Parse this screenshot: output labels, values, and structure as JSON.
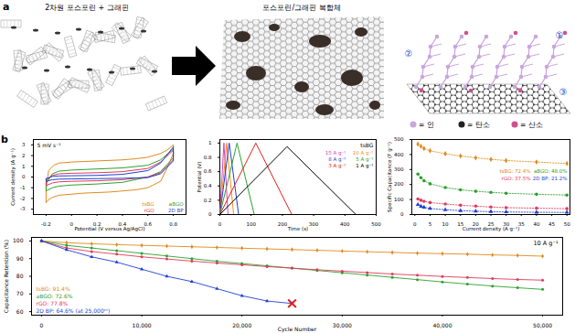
{
  "panel_a": {
    "label": "a",
    "left_title": "2차원 포스포린 + 그래핀",
    "middle_title": "포스포린/그래핀 복합체",
    "atom_legend": [
      {
        "label": "= 인",
        "color": "#c9a6dd"
      },
      {
        "label": "= 탄소",
        "color": "#222222"
      },
      {
        "label": "= 산소",
        "color": "#d0508f"
      }
    ],
    "site_labels": [
      "①",
      "②",
      "③"
    ]
  },
  "panel_b": {
    "label": "b"
  },
  "chart_data": [
    {
      "type": "line",
      "annotations": [
        "5 mV s⁻¹"
      ],
      "x_label": "Potential (V versus Ag/AgCl)",
      "y_label": "Current density (A g⁻¹)",
      "xlim": [
        -0.3,
        0.9
      ],
      "xticks": [
        -0.2,
        0,
        0.2,
        0.4,
        0.6,
        0.8
      ],
      "ylim": [
        -3.5,
        3.5
      ],
      "yticks": [
        -3,
        -2,
        -1,
        0,
        1,
        2,
        3
      ],
      "series": [
        {
          "name": "tsBG",
          "color": "#e08a1e",
          "x": [
            -0.2,
            -0.18,
            -0.14,
            -0.1,
            0,
            0.1,
            0.2,
            0.3,
            0.4,
            0.5,
            0.6,
            0.7,
            0.75,
            0.8,
            0.8,
            0.75,
            0.7,
            0.6,
            0.5,
            0.4,
            0.3,
            0.2,
            0.1,
            0,
            -0.1,
            -0.15,
            -0.18,
            -0.2,
            -0.2
          ],
          "values": [
            -1.2,
            0.6,
            1.1,
            1.3,
            1.4,
            1.45,
            1.5,
            1.55,
            1.6,
            1.7,
            1.85,
            2.2,
            2.5,
            3.0,
            2.2,
            0.8,
            -0.4,
            -1.0,
            -1.2,
            -1.3,
            -1.4,
            -1.45,
            -1.5,
            -1.6,
            -1.7,
            -1.9,
            -2.1,
            -2.4,
            -1.2
          ]
        },
        {
          "name": "aBGO",
          "color": "#2ca02c",
          "x": [
            -0.2,
            -0.15,
            -0.1,
            0,
            0.2,
            0.4,
            0.6,
            0.7,
            0.8,
            0.8,
            0.7,
            0.6,
            0.4,
            0.2,
            0,
            -0.1,
            -0.15,
            -0.2,
            -0.2
          ],
          "values": [
            -0.6,
            0.3,
            0.55,
            0.65,
            0.75,
            0.85,
            1.1,
            1.6,
            2.6,
            1.8,
            0.5,
            0,
            -0.5,
            -0.65,
            -0.75,
            -0.85,
            -1.0,
            -1.3,
            -0.6
          ]
        },
        {
          "name": "rGO",
          "color": "#e03a5a",
          "x": [
            -0.2,
            -0.15,
            -0.1,
            0,
            0.2,
            0.4,
            0.6,
            0.7,
            0.8,
            0.8,
            0.7,
            0.6,
            0.4,
            0.2,
            0,
            -0.1,
            -0.15,
            -0.2,
            -0.2
          ],
          "values": [
            -0.3,
            0.15,
            0.3,
            0.35,
            0.4,
            0.5,
            0.8,
            1.4,
            2.5,
            1.6,
            0.4,
            0,
            -0.25,
            -0.35,
            -0.4,
            -0.45,
            -0.55,
            -0.8,
            -0.3
          ]
        },
        {
          "name": "2D BP",
          "color": "#1f3fd0",
          "x": [
            -0.2,
            -0.15,
            -0.1,
            0,
            0.2,
            0.4,
            0.6,
            0.7,
            0.8,
            0.8,
            0.7,
            0.6,
            0.4,
            0.2,
            0,
            -0.1,
            -0.15,
            -0.2,
            -0.2
          ],
          "values": [
            -0.15,
            0.05,
            0.1,
            0.12,
            0.15,
            0.25,
            0.6,
            1.3,
            2.8,
            1.5,
            0.3,
            -0.05,
            -0.12,
            -0.15,
            -0.18,
            -0.2,
            -0.25,
            -0.4,
            -0.15
          ]
        }
      ]
    },
    {
      "type": "line",
      "annotations": [
        "tsBG"
      ],
      "x_label": "Time (s)",
      "y_label": "Potential (V)",
      "xlim": [
        0,
        500
      ],
      "xticks": [
        0,
        100,
        200,
        300,
        400,
        500
      ],
      "ylim": [
        0,
        1.05
      ],
      "yticks": [
        0,
        0.2,
        0.4,
        0.6,
        0.8,
        1
      ],
      "series": [
        {
          "name": "15 A g⁻¹",
          "color": "#e040c0",
          "x": [
            0,
            13,
            26
          ],
          "values": [
            0,
            1,
            0
          ]
        },
        {
          "name": "10 A g⁻¹",
          "color": "#ff8c1a",
          "x": [
            0,
            22,
            44
          ],
          "values": [
            0,
            1,
            0
          ]
        },
        {
          "name": "8 A g⁻¹",
          "color": "#1f3fd0",
          "x": [
            0,
            30,
            60
          ],
          "values": [
            0,
            1,
            0
          ]
        },
        {
          "name": "5 A g⁻¹",
          "color": "#2ca02c",
          "x": [
            0,
            55,
            110
          ],
          "values": [
            0,
            1,
            0
          ]
        },
        {
          "name": "3 A g⁻¹",
          "color": "#e02020",
          "x": [
            0,
            115,
            230
          ],
          "values": [
            0,
            1,
            0
          ]
        },
        {
          "name": "1 A g⁻¹",
          "color": "#000000",
          "x": [
            0,
            215,
            435
          ],
          "values": [
            0,
            0.95,
            0
          ]
        }
      ]
    },
    {
      "type": "line",
      "x_label": "Current density (A g⁻¹)",
      "y_label": "Specific Capacitance (F g⁻¹)",
      "xlim": [
        -1,
        51
      ],
      "xticks": [
        0,
        5,
        10,
        15,
        20,
        25,
        30,
        35,
        40,
        45,
        50
      ],
      "ylim": [
        0,
        500
      ],
      "yticks": [
        0,
        100,
        200,
        300,
        400,
        500
      ],
      "x": [
        1,
        2,
        3,
        5,
        10,
        15,
        20,
        25,
        30,
        40,
        50
      ],
      "series": [
        {
          "name": "tsBG: 72.4%",
          "color": "#e08a1e",
          "marker": "diamond",
          "line_style": "dotted",
          "values": [
            470,
            455,
            440,
            425,
            405,
            390,
            378,
            368,
            360,
            350,
            340
          ]
        },
        {
          "name": "aBGO: 48.0%",
          "color": "#2ca02c",
          "marker": "circle",
          "line_style": "dotted",
          "values": [
            270,
            245,
            225,
            205,
            180,
            165,
            155,
            148,
            142,
            135,
            130
          ]
        },
        {
          "name": "rGO: 37.5%",
          "color": "#e03a5a",
          "marker": "circle",
          "line_style": "dotted",
          "values": [
            104,
            95,
            88,
            80,
            70,
            62,
            56,
            50,
            46,
            42,
            39
          ]
        },
        {
          "name": "2D BP: 21.2%",
          "color": "#1f3fd0",
          "marker": "triangle",
          "line_style": "dotted",
          "values": [
            66,
            55,
            48,
            40,
            32,
            26,
            22,
            19,
            17,
            15,
            14
          ]
        }
      ]
    },
    {
      "type": "line",
      "annotations": [
        "10 A g⁻¹"
      ],
      "x_label": "Cycle Number",
      "y_label": "Capacitance Retention (%)",
      "xlim": [
        -1000,
        52000
      ],
      "xticks": [
        0,
        {
          "value": 10000,
          "label": "10,000"
        },
        {
          "value": 20000,
          "label": "20,000"
        },
        {
          "value": 30000,
          "label": "30,000"
        },
        {
          "value": 40000,
          "label": "40,000"
        },
        {
          "value": 50000,
          "label": "50,000"
        }
      ],
      "ylim": [
        58,
        102
      ],
      "yticks": [
        60,
        70,
        80,
        90,
        100
      ],
      "series": [
        {
          "name": "tsBG: 91.4%",
          "color": "#e08a1e",
          "marker": "diamond",
          "x": [
            0,
            2500,
            5000,
            7500,
            10000,
            12500,
            15000,
            17500,
            20000,
            22500,
            25000,
            27500,
            30000,
            32500,
            35000,
            37500,
            40000,
            42500,
            45000,
            47500,
            50000
          ],
          "values": [
            100,
            99.0,
            98.4,
            97.9,
            97.5,
            97.1,
            96.7,
            96.3,
            95.9,
            95.5,
            95.1,
            94.7,
            94.3,
            93.9,
            93.5,
            93.1,
            92.8,
            92.5,
            92.1,
            91.8,
            91.4
          ]
        },
        {
          "name": "aBGO: 72.6%",
          "color": "#2ca02c",
          "marker": "circle",
          "x": [
            0,
            2500,
            5000,
            7500,
            10000,
            12500,
            15000,
            17500,
            20000,
            22500,
            25000,
            27500,
            30000,
            32500,
            35000,
            37500,
            40000,
            42500,
            45000,
            47500,
            50000
          ],
          "values": [
            100,
            97.5,
            96,
            94.5,
            93,
            91.5,
            90,
            88.5,
            87.2,
            85.9,
            84.6,
            83.3,
            82,
            80.7,
            79.4,
            78.1,
            76.8,
            75.6,
            74.5,
            73.5,
            72.6
          ]
        },
        {
          "name": "rGO: 77.8%",
          "color": "#e03a5a",
          "marker": "circle",
          "x": [
            0,
            2500,
            5000,
            7500,
            10000,
            12500,
            15000,
            17500,
            20000,
            22500,
            25000,
            27500,
            30000,
            32500,
            35000,
            37500,
            40000,
            42500,
            45000,
            47500,
            50000
          ],
          "values": [
            100,
            96,
            94,
            92.5,
            91,
            89.8,
            88.6,
            87.5,
            86.5,
            85.5,
            84.6,
            83.7,
            82.9,
            82.1,
            81.3,
            80.6,
            79.9,
            79.3,
            78.7,
            78.2,
            77.8
          ]
        },
        {
          "name": "2D BP: 64.6% (at 25,000ᵗʰ)",
          "color": "#1f3fd0",
          "marker": "triangle",
          "x": [
            0,
            2500,
            5000,
            7500,
            10000,
            12500,
            15000,
            17500,
            20000,
            22500,
            25000
          ],
          "values": [
            100,
            95,
            91,
            88,
            84,
            80,
            77,
            73,
            69,
            66,
            64.6
          ]
        }
      ]
    }
  ]
}
